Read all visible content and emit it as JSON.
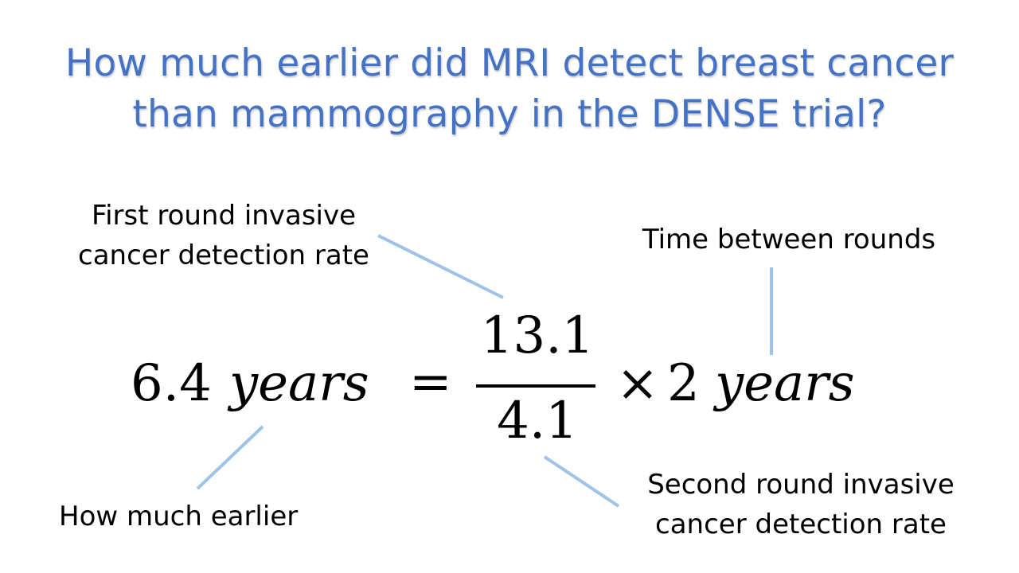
{
  "title": {
    "line1": "How much earlier did MRI detect breast cancer",
    "line2": "than mammography in the DENSE trial?"
  },
  "equation": {
    "result_value": "6.4",
    "result_unit": "years",
    "equals": "=",
    "numerator": "13.1",
    "denominator": "4.1",
    "times": "×",
    "interval_value": "2",
    "interval_unit": "years"
  },
  "labels": {
    "first_round": [
      "First round invasive",
      "cancer detection rate"
    ],
    "time_between": "Time between rounds",
    "how_much_earlier": "How much earlier",
    "second_round": [
      "Second round invasive",
      "cancer detection rate"
    ]
  },
  "colors": {
    "title": "#4472c4",
    "leader_line": "#9dc3e6",
    "text": "#000000"
  }
}
